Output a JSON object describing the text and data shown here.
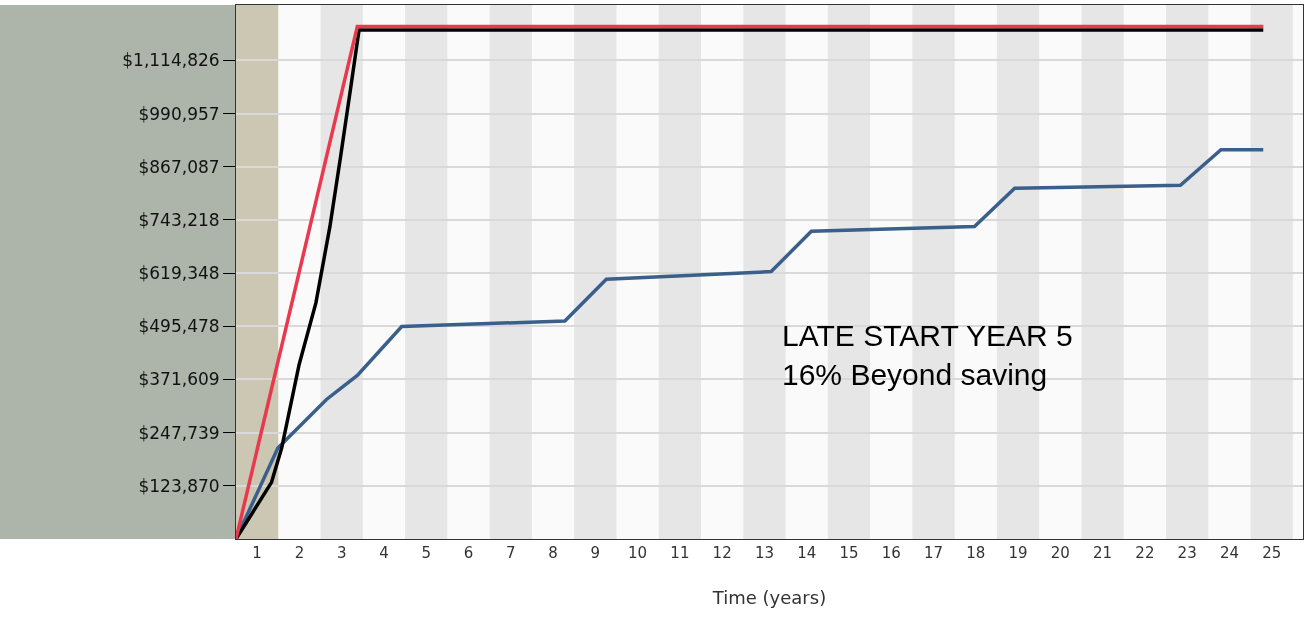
{
  "chart_data": {
    "type": "line",
    "xlabel": "Time (years)",
    "xlim": [
      0,
      25.24
    ],
    "xticks": [
      {
        "value": 0.5,
        "label": "1"
      },
      {
        "value": 1.5,
        "label": "2"
      },
      {
        "value": 2.5,
        "label": "3"
      },
      {
        "value": 3.5,
        "label": "4"
      },
      {
        "value": 4.5,
        "label": "5"
      },
      {
        "value": 5.5,
        "label": "6"
      },
      {
        "value": 6.5,
        "label": "7"
      },
      {
        "value": 7.5,
        "label": "8"
      },
      {
        "value": 8.5,
        "label": "9"
      },
      {
        "value": 9.5,
        "label": "10"
      },
      {
        "value": 10.5,
        "label": "11"
      },
      {
        "value": 11.5,
        "label": "12"
      },
      {
        "value": 12.5,
        "label": "13"
      },
      {
        "value": 13.5,
        "label": "14"
      },
      {
        "value": 14.5,
        "label": "15"
      },
      {
        "value": 15.5,
        "label": "16"
      },
      {
        "value": 16.5,
        "label": "17"
      },
      {
        "value": 17.5,
        "label": "18"
      },
      {
        "value": 18.5,
        "label": "19"
      },
      {
        "value": 19.5,
        "label": "20"
      },
      {
        "value": 20.5,
        "label": "21"
      },
      {
        "value": 21.5,
        "label": "22"
      },
      {
        "value": 22.5,
        "label": "23"
      },
      {
        "value": 23.5,
        "label": "24"
      },
      {
        "value": 24.5,
        "label": "25"
      }
    ],
    "ylim": [
      0,
      1244000
    ],
    "yticks": [
      {
        "value": 123870,
        "label": "$123,870"
      },
      {
        "value": 247739,
        "label": "$247,739"
      },
      {
        "value": 371609,
        "label": "$371,609"
      },
      {
        "value": 495478,
        "label": "$495,478"
      },
      {
        "value": 619348,
        "label": "$619,348"
      },
      {
        "value": 743218,
        "label": "$743,218"
      },
      {
        "value": 867087,
        "label": "$867,087"
      },
      {
        "value": 990957,
        "label": "$990,957"
      },
      {
        "value": 1114826,
        "label": "$1,114,826"
      }
    ],
    "grid": "y",
    "marker": "none",
    "line_style": "solid",
    "bands": [
      {
        "axis": "x",
        "from": 0,
        "to": 1,
        "color": "#cbc7b2"
      },
      {
        "axis": "x",
        "from": 2,
        "to": 3,
        "color": "#e6e6e6"
      },
      {
        "axis": "x",
        "from": 4,
        "to": 5,
        "color": "#e6e6e6"
      },
      {
        "axis": "x",
        "from": 6,
        "to": 7,
        "color": "#e6e6e6"
      },
      {
        "axis": "x",
        "from": 8,
        "to": 9,
        "color": "#e6e6e6"
      },
      {
        "axis": "x",
        "from": 10,
        "to": 11,
        "color": "#e6e6e6"
      },
      {
        "axis": "x",
        "from": 12,
        "to": 13,
        "color": "#e6e6e6"
      },
      {
        "axis": "x",
        "from": 14,
        "to": 15,
        "color": "#e6e6e6"
      },
      {
        "axis": "x",
        "from": 16,
        "to": 17,
        "color": "#e6e6e6"
      },
      {
        "axis": "x",
        "from": 18,
        "to": 19,
        "color": "#e6e6e6"
      },
      {
        "axis": "x",
        "from": 20,
        "to": 21,
        "color": "#e6e6e6"
      },
      {
        "axis": "x",
        "from": 22,
        "to": 23,
        "color": "#e6e6e6"
      },
      {
        "axis": "x",
        "from": 24,
        "to": 25,
        "color": "#e6e6e6"
      }
    ],
    "annotations": [
      "LATE START YEAR 5\n16% Beyond saving"
    ],
    "series": [
      {
        "color": "#3a5f8a",
        "x": [
          0,
          0.99,
          2.14,
          2.87,
          3.92,
          7.78,
          8.76,
          12.66,
          13.61,
          17.47,
          18.42,
          22.34,
          23.3,
          24.3
        ],
        "values": [
          0,
          212000,
          325000,
          381000,
          495000,
          508000,
          605000,
          623000,
          717000,
          728000,
          817000,
          824000,
          907000,
          907000
        ]
      },
      {
        "color": "#000000",
        "x": [
          0,
          0.84,
          1.08,
          1.49,
          1.89,
          2.22,
          2.47,
          2.71,
          2.91,
          24.3
        ],
        "values": [
          0,
          132000,
          212000,
          405000,
          550000,
          727000,
          888000,
          1049000,
          1186000,
          1186000
        ]
      },
      {
        "color": "#e8394f",
        "x": [
          0,
          2.87,
          24.3
        ],
        "values": [
          0,
          1194000,
          1194000
        ]
      }
    ]
  }
}
